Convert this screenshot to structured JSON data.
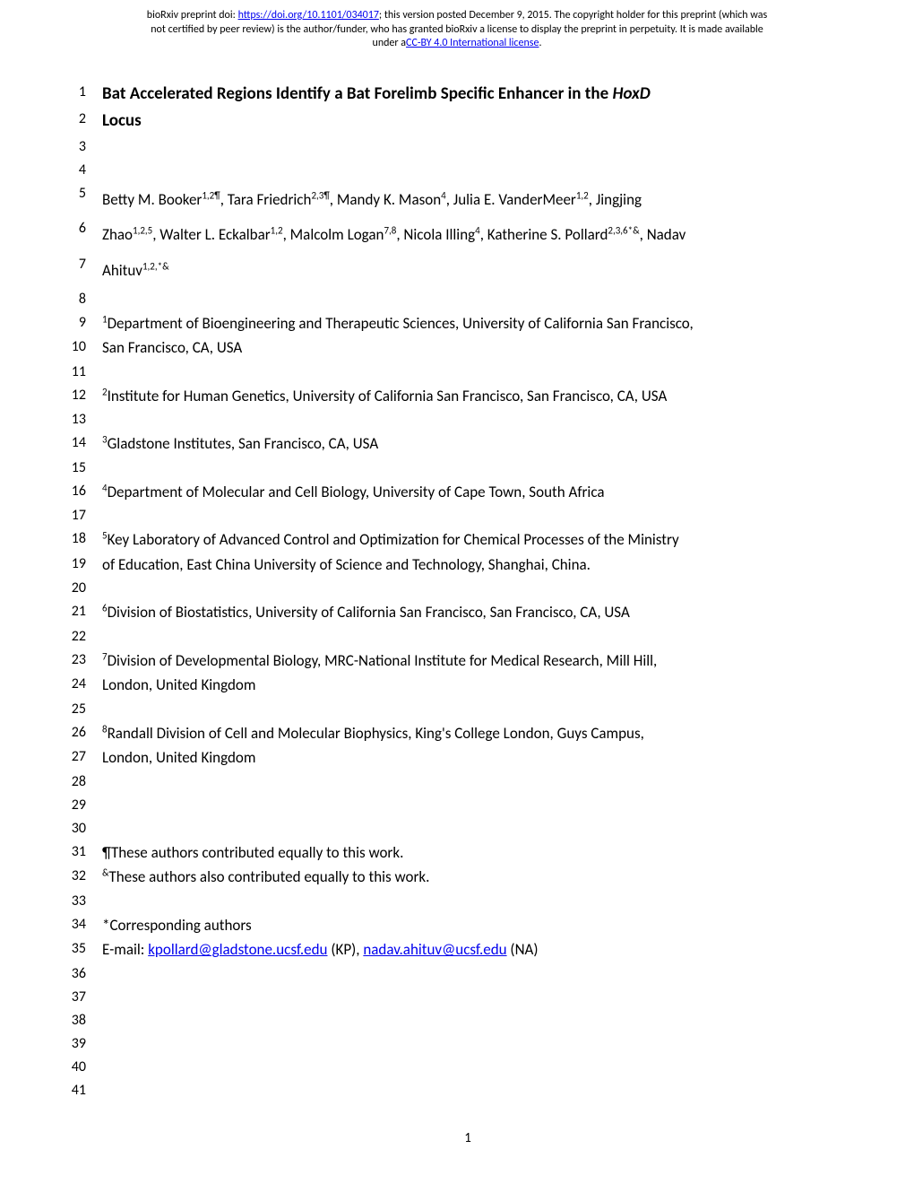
{
  "header": {
    "line1_prefix": "bioRxiv preprint doi: ",
    "doi_url": "https://doi.org/10.1101/034017",
    "line1_suffix": "; this version posted December 9, 2015. The copyright holder for this preprint (which was",
    "line2": "not certified by peer review) is the author/funder, who has granted bioRxiv a license to display the preprint in perpetuity. It is made available",
    "line3_prefix": "under a",
    "license_text": "CC-BY 4.0 International license",
    "line3_suffix": "."
  },
  "title": {
    "part1": "Bat Accelerated Regions Identify a Bat Forelimb Specific Enhancer in the ",
    "italic": "HoxD",
    "part2": "Locus"
  },
  "authors": {
    "l5_a": "Betty M. Booker",
    "l5_a_sup": "1,2¶",
    "l5_b": ", Tara Friedrich",
    "l5_b_sup": "2,3¶",
    "l5_c": ", Mandy K. Mason",
    "l5_c_sup": "4",
    "l5_d": ", Julia E. VanderMeer",
    "l5_d_sup": "1,2",
    "l5_e": ", Jingjing",
    "l6_a": "Zhao",
    "l6_a_sup": "1,2,5",
    "l6_b": ", Walter L. Eckalbar",
    "l6_b_sup": "1,2",
    "l6_c": ", Malcolm Logan",
    "l6_c_sup": "7,8",
    "l6_d": ", Nicola Illing",
    "l6_d_sup": "4",
    "l6_e": ", Katherine S. Pollard",
    "l6_e_sup": "2,3,6*&",
    "l6_f": ", Nadav",
    "l7_a": "Ahituv",
    "l7_a_sup": "1,2,*&"
  },
  "affiliations": {
    "a1_sup": "1",
    "a1_text": "Department of Bioengineering and Therapeutic Sciences, University of California San Francisco,",
    "a1_cont": "San Francisco, CA, USA",
    "a2_sup": "2",
    "a2_text": "Institute for Human Genetics, University of California San Francisco, San Francisco, CA, USA",
    "a3_sup": "3",
    "a3_text": "Gladstone Institutes, San Francisco, CA, USA",
    "a4_sup": "4",
    "a4_text": "Department of Molecular and Cell Biology, University of Cape Town, South Africa",
    "a5_sup": "5",
    "a5_text": "Key Laboratory of Advanced Control and Optimization for Chemical Processes of the Ministry",
    "a5_cont": "of Education, East China University of Science and Technology, Shanghai, China.",
    "a6_sup": "6",
    "a6_text": "Division of Biostatistics, University of California San Francisco, San Francisco, CA, USA",
    "a7_sup": "7",
    "a7_text": "Division of Developmental Biology, MRC-National Institute for Medical Research, Mill Hill,",
    "a7_cont": "London, United Kingdom",
    "a8_sup": "8",
    "a8_text": "Randall Division of Cell and Molecular Biophysics, King's College London, Guys Campus,",
    "a8_cont": "London, United Kingdom"
  },
  "notes": {
    "n1": "¶These authors contributed equally to this work.",
    "n2_sup": "&",
    "n2_text": "These authors also contributed equally to this work.",
    "corr": "*Corresponding authors",
    "email_prefix": "E-mail: ",
    "email1": "kpollard@gladstone.ucsf.edu",
    "email1_suffix": " (KP), ",
    "email2": "nadav.ahituv@ucsf.edu",
    "email2_suffix": " (NA)"
  },
  "line_numbers": {
    "l1": "1",
    "l2": "2",
    "l3": "3",
    "l4": "4",
    "l5": "5",
    "l6": "6",
    "l7": "7",
    "l8": "8",
    "l9": "9",
    "l10": "10",
    "l11": "11",
    "l12": "12",
    "l13": "13",
    "l14": "14",
    "l15": "15",
    "l16": "16",
    "l17": "17",
    "l18": "18",
    "l19": "19",
    "l20": "20",
    "l21": "21",
    "l22": "22",
    "l23": "23",
    "l24": "24",
    "l25": "25",
    "l26": "26",
    "l27": "27",
    "l28": "28",
    "l29": "29",
    "l30": "30",
    "l31": "31",
    "l32": "32",
    "l33": "33",
    "l34": "34",
    "l35": "35",
    "l36": "36",
    "l37": "37",
    "l38": "38",
    "l39": "39",
    "l40": "40",
    "l41": "41"
  },
  "page_number": "1"
}
